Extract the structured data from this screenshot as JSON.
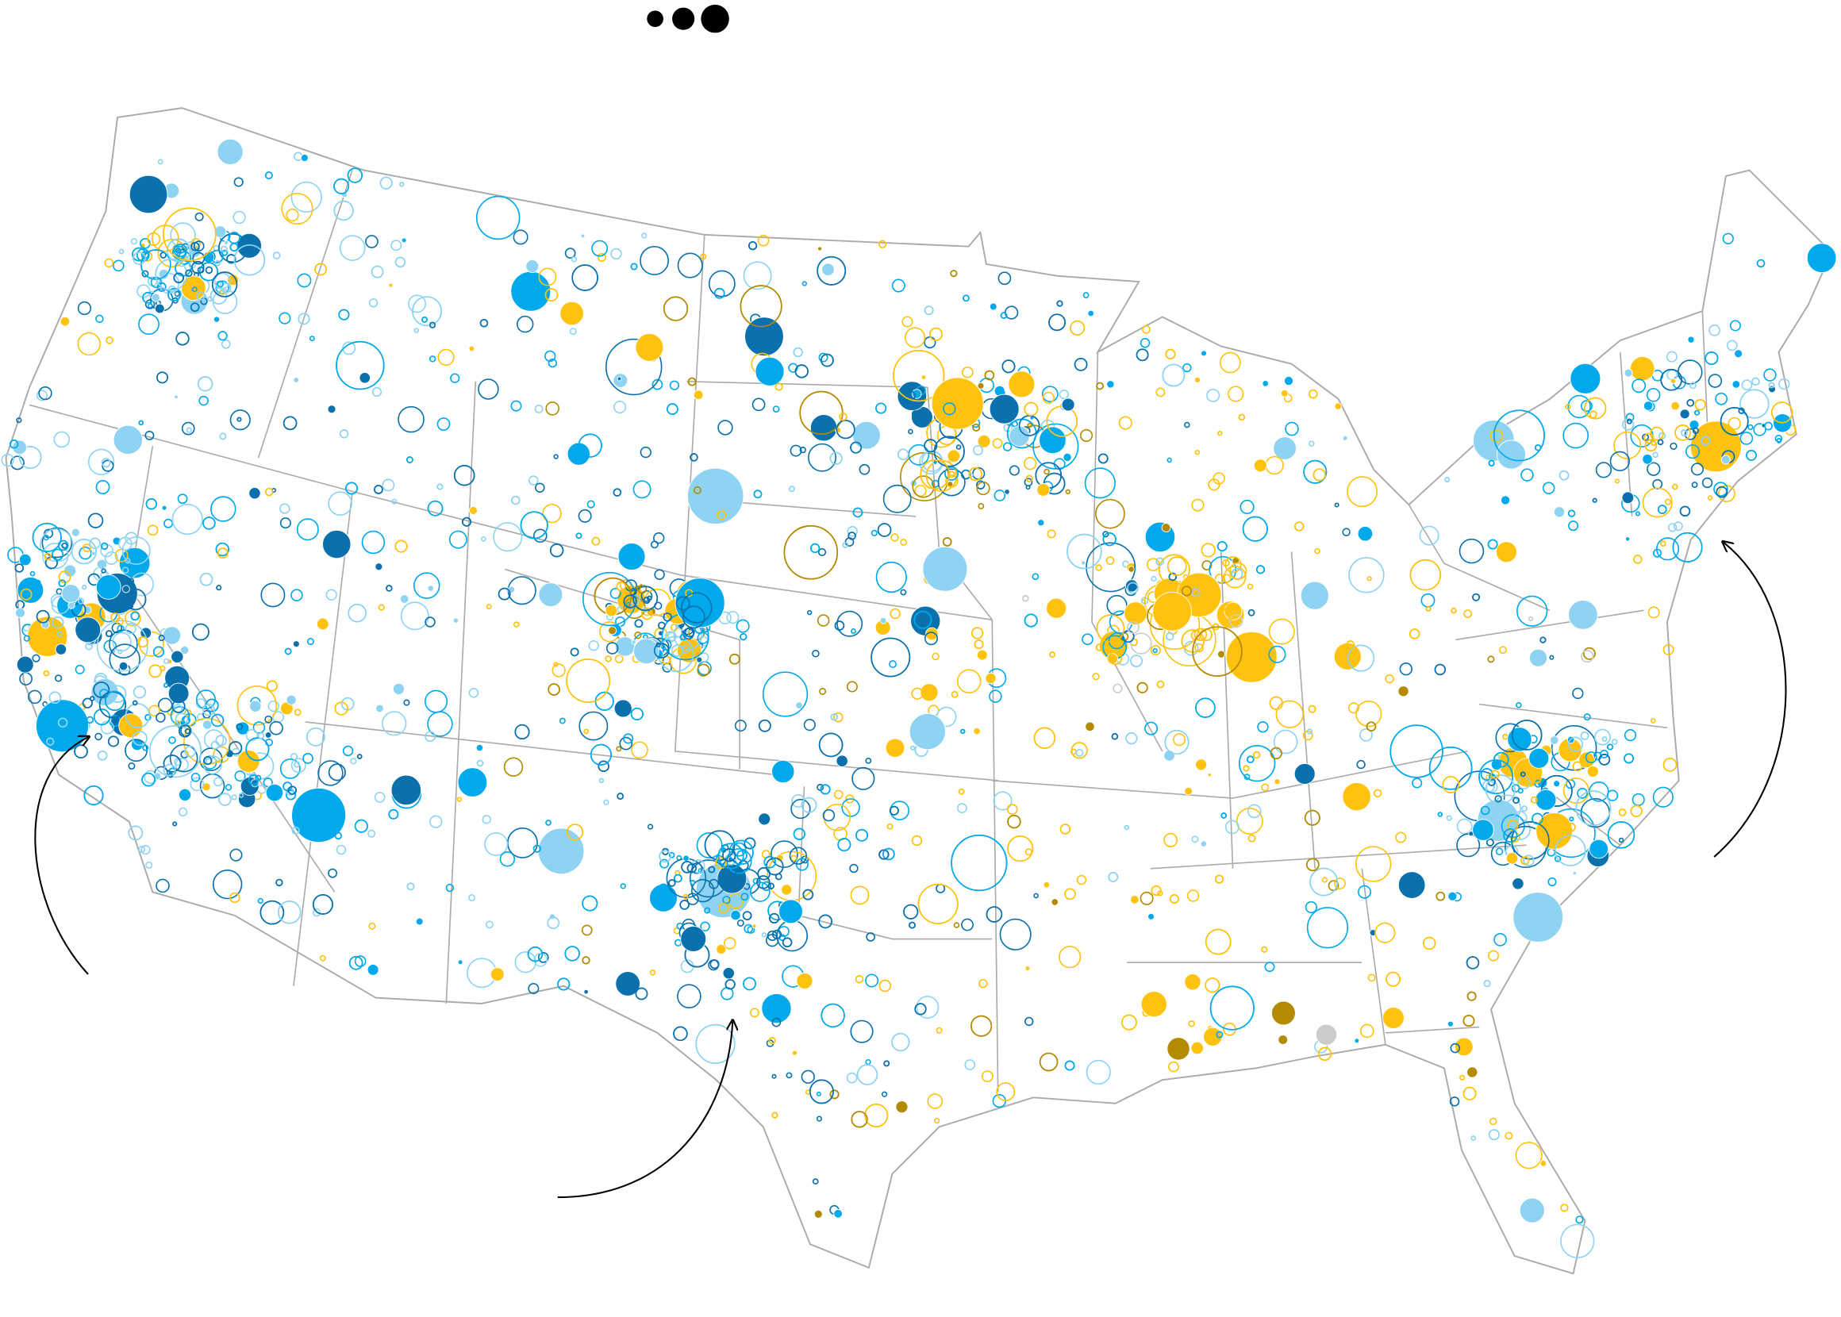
{
  "legend": {
    "size_markers": [
      "small-dot-icon",
      "medium-dot-icon",
      "large-dot-icon"
    ],
    "marker_color": "#000000"
  },
  "map": {
    "region": "contiguous-united-states",
    "outline_color": "#aaaaaa",
    "background": "#ffffff",
    "marker_styles": [
      "filled",
      "outlined"
    ],
    "palette": {
      "dark_blue": "#0a71ad",
      "bright_blue": "#00a9ec",
      "pale_blue": "#8ed4f2",
      "yellow": "#ffc20e",
      "dark_gold": "#b38a00",
      "grey": "#cccccc"
    }
  },
  "annotations": {
    "arrow_count": 3,
    "arrow_color": "#000000"
  }
}
